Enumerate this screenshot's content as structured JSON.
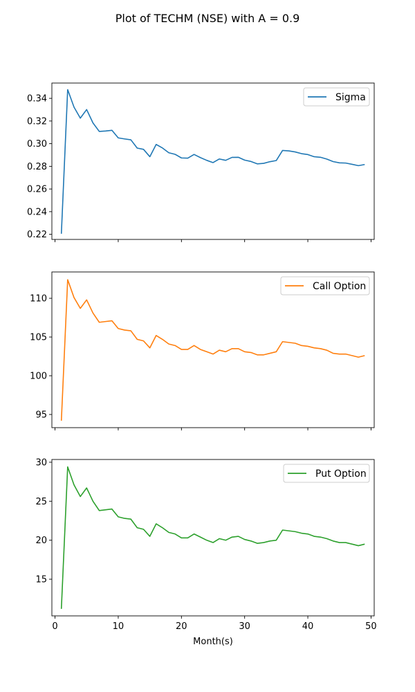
{
  "figure": {
    "title": "Plot of TECHM (NSE) with A = 0.9"
  },
  "chart_data": [
    {
      "type": "line",
      "legend_position": "top-right",
      "grid": false,
      "xlim": [
        -0.5,
        50.5
      ],
      "ylim": [
        0.2155,
        0.3535
      ],
      "x_ticks": [
        0,
        10,
        20,
        30,
        40,
        50
      ],
      "x_tick_labels_shown": false,
      "y_ticks": [
        0.22,
        0.24,
        0.26,
        0.28,
        0.3,
        0.32,
        0.34
      ],
      "y_tick_labels": [
        "0.22",
        "0.24",
        "0.26",
        "0.28",
        "0.30",
        "0.32",
        "0.34"
      ],
      "xlabel": "",
      "ylabel": "",
      "series": [
        {
          "name": "Sigma",
          "color": "#1f77b4",
          "x": [
            1,
            2,
            3,
            4,
            5,
            6,
            7,
            8,
            9,
            10,
            11,
            12,
            13,
            14,
            15,
            16,
            17,
            18,
            19,
            20,
            21,
            22,
            23,
            24,
            25,
            26,
            27,
            28,
            29,
            30,
            31,
            32,
            33,
            34,
            35,
            36,
            37,
            38,
            39,
            40,
            41,
            42,
            43,
            44,
            45,
            46,
            47,
            48,
            49
          ],
          "y": [
            0.2205,
            0.3477,
            0.3323,
            0.3225,
            0.3301,
            0.3183,
            0.3108,
            0.3112,
            0.3118,
            0.3051,
            0.3042,
            0.3034,
            0.2961,
            0.295,
            0.2885,
            0.2993,
            0.2962,
            0.292,
            0.2906,
            0.2874,
            0.2872,
            0.2905,
            0.2877,
            0.2853,
            0.2833,
            0.2865,
            0.2853,
            0.2879,
            0.288,
            0.2855,
            0.2843,
            0.2822,
            0.2826,
            0.2841,
            0.2851,
            0.294,
            0.2936,
            0.2927,
            0.2912,
            0.2904,
            0.2885,
            0.288,
            0.2864,
            0.2842,
            0.2831,
            0.2829,
            0.2818,
            0.2806,
            0.2816
          ]
        }
      ]
    },
    {
      "type": "line",
      "legend_position": "top-right",
      "grid": false,
      "xlim": [
        -0.5,
        50.5
      ],
      "ylim": [
        93.3,
        113.4
      ],
      "x_ticks": [
        0,
        10,
        20,
        30,
        40,
        50
      ],
      "x_tick_labels_shown": false,
      "y_ticks": [
        95,
        100,
        105,
        110
      ],
      "y_tick_labels": [
        "95",
        "100",
        "105",
        "110"
      ],
      "xlabel": "",
      "ylabel": "",
      "series": [
        {
          "name": "Call Option",
          "color": "#ff7f0e",
          "x": [
            1,
            2,
            3,
            4,
            5,
            6,
            7,
            8,
            9,
            10,
            11,
            12,
            13,
            14,
            15,
            16,
            17,
            18,
            19,
            20,
            21,
            22,
            23,
            24,
            25,
            26,
            27,
            28,
            29,
            30,
            31,
            32,
            33,
            34,
            35,
            36,
            37,
            38,
            39,
            40,
            41,
            42,
            43,
            44,
            45,
            46,
            47,
            48,
            49
          ],
          "y": [
            94.2,
            112.4,
            110.1,
            108.7,
            109.8,
            108.1,
            106.9,
            107.0,
            107.1,
            106.1,
            105.9,
            105.8,
            104.7,
            104.5,
            103.6,
            105.2,
            104.7,
            104.1,
            103.9,
            103.4,
            103.4,
            103.9,
            103.4,
            103.1,
            102.8,
            103.3,
            103.1,
            103.5,
            103.5,
            103.1,
            103.0,
            102.7,
            102.7,
            102.9,
            103.1,
            104.4,
            104.3,
            104.2,
            103.9,
            103.8,
            103.6,
            103.5,
            103.3,
            102.9,
            102.8,
            102.8,
            102.6,
            102.4,
            102.6
          ]
        }
      ]
    },
    {
      "type": "line",
      "legend_position": "top-right",
      "grid": false,
      "xlim": [
        -0.5,
        50.5
      ],
      "ylim": [
        10.3,
        30.35
      ],
      "x_ticks": [
        0,
        10,
        20,
        30,
        40,
        50
      ],
      "x_tick_labels_shown": true,
      "x_tick_labels": [
        "0",
        "10",
        "20",
        "30",
        "40",
        "50"
      ],
      "y_ticks": [
        15,
        20,
        25,
        30
      ],
      "y_tick_labels": [
        "15",
        "20",
        "25",
        "30"
      ],
      "xlabel": "Month(s)",
      "ylabel": "",
      "series": [
        {
          "name": "Put Option",
          "color": "#2ca02c",
          "x": [
            1,
            2,
            3,
            4,
            5,
            6,
            7,
            8,
            9,
            10,
            11,
            12,
            13,
            14,
            15,
            16,
            17,
            18,
            19,
            20,
            21,
            22,
            23,
            24,
            25,
            26,
            27,
            28,
            29,
            30,
            31,
            32,
            33,
            34,
            35,
            36,
            37,
            38,
            39,
            40,
            41,
            42,
            43,
            44,
            45,
            46,
            47,
            48,
            49
          ],
          "y": [
            11.2,
            29.4,
            27.1,
            25.6,
            26.7,
            25.0,
            23.8,
            23.9,
            24.0,
            23.0,
            22.8,
            22.7,
            21.6,
            21.4,
            20.5,
            22.1,
            21.6,
            21.0,
            20.8,
            20.3,
            20.3,
            20.8,
            20.4,
            20.0,
            19.7,
            20.2,
            20.0,
            20.4,
            20.5,
            20.1,
            19.9,
            19.6,
            19.7,
            19.9,
            20.0,
            21.3,
            21.2,
            21.1,
            20.9,
            20.8,
            20.5,
            20.4,
            20.2,
            19.9,
            19.7,
            19.7,
            19.5,
            19.3,
            19.5
          ]
        }
      ]
    }
  ]
}
